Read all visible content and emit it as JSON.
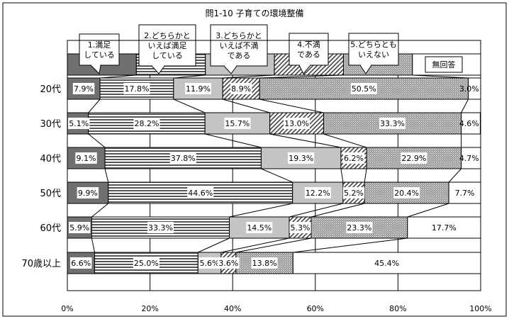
{
  "chart_data": {
    "type": "bar",
    "stacked": true,
    "orientation": "horizontal",
    "title": "問1-10 子育ての環境整備",
    "xlim": [
      0,
      100
    ],
    "x_ticks": [
      "0%",
      "20%",
      "40%",
      "60%",
      "80%",
      "100%"
    ],
    "grid": true,
    "categories": [
      "20代",
      "30代",
      "40代",
      "50代",
      "60代",
      "70歳以上"
    ],
    "series": [
      {
        "name": "1.満足している",
        "values": [
          7.9,
          5.1,
          9.1,
          9.9,
          5.9,
          6.6
        ]
      },
      {
        "name": "2.どちらかといえば満足している",
        "values": [
          17.8,
          28.2,
          37.8,
          44.6,
          33.3,
          25.0
        ]
      },
      {
        "name": "3.どちらかといえば不満である",
        "values": [
          11.9,
          15.7,
          19.3,
          12.2,
          14.5,
          5.6
        ]
      },
      {
        "name": "4.不満である",
        "values": [
          8.9,
          13.0,
          6.2,
          5.2,
          5.3,
          3.6
        ]
      },
      {
        "name": "5.どちらともいえない",
        "values": [
          50.5,
          33.3,
          22.9,
          20.4,
          23.3,
          13.8
        ]
      },
      {
        "name": "無回答",
        "values": [
          3.0,
          4.6,
          4.7,
          7.7,
          17.7,
          45.4
        ]
      }
    ],
    "value_labels": [
      [
        "7.9%",
        "17.8%",
        "11.9%",
        "8.9%",
        "50.5%",
        "3.0%"
      ],
      [
        "5.1%",
        "28.2%",
        "15.7%",
        "13.0%",
        "33.3%",
        "4.6%"
      ],
      [
        "9.1%",
        "37.8%",
        "19.3%",
        "6.2%",
        "22.9%",
        "4.7%"
      ],
      [
        "9.9%",
        "44.6%",
        "12.2%",
        "5.2%",
        "20.4%",
        "7.7%"
      ],
      [
        "5.9%",
        "33.3%",
        "14.5%",
        "5.3%",
        "23.3%",
        "17.7%"
      ],
      [
        "6.6%",
        "25.0%",
        "5.6%",
        "3.6%",
        "13.8%",
        "45.4%"
      ]
    ],
    "legend_bar_values": [
      16.7,
      16.7,
      16.7,
      16.7,
      16.7,
      16.5
    ],
    "legend_labels": [
      [
        "1.満足",
        "している"
      ],
      [
        "2.どちらかと",
        "いえば満足",
        "している"
      ],
      [
        "3.どちらかと",
        "いえば不満",
        "である"
      ],
      [
        "4.不満",
        "である"
      ],
      [
        "5.どちらとも",
        "いえない"
      ],
      [
        "無回答"
      ]
    ]
  }
}
